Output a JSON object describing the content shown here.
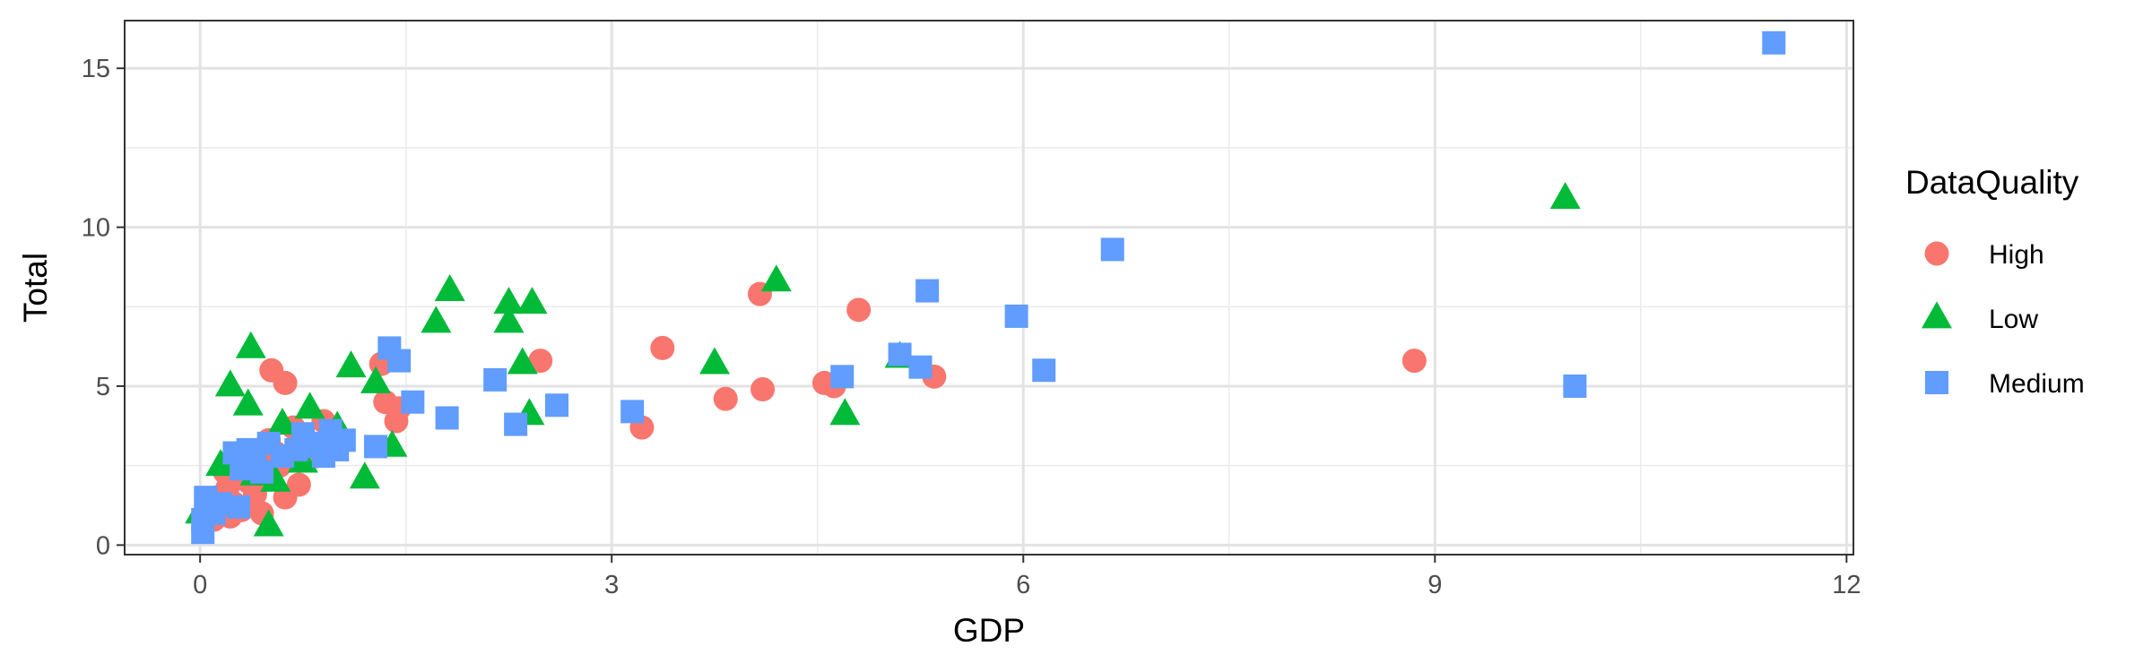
{
  "chart_data": {
    "type": "scatter",
    "title": "",
    "xlabel": "GDP",
    "ylabel": "Total",
    "xlim": [
      -0.55,
      12.05
    ],
    "ylim": [
      -0.3,
      16.5
    ],
    "x_ticks": [
      0,
      3,
      6,
      9,
      12
    ],
    "y_ticks": [
      0,
      5,
      10,
      15
    ],
    "grid": true,
    "legend": {
      "title": "DataQuality",
      "position": "right"
    },
    "series": [
      {
        "name": "High",
        "shape": "circle",
        "color": "#F8766D",
        "points": [
          [
            0.05,
            1.2
          ],
          [
            0.1,
            0.8
          ],
          [
            0.12,
            1.5
          ],
          [
            0.15,
            1.0
          ],
          [
            0.18,
            2.3
          ],
          [
            0.2,
            1.8
          ],
          [
            0.22,
            0.9
          ],
          [
            0.25,
            1.3
          ],
          [
            0.3,
            1.1
          ],
          [
            0.35,
            2.0
          ],
          [
            0.4,
            1.6
          ],
          [
            0.45,
            1.0
          ],
          [
            0.5,
            3.3
          ],
          [
            0.55,
            2.9
          ],
          [
            0.58,
            2.5
          ],
          [
            0.62,
            1.5
          ],
          [
            0.68,
            3.7
          ],
          [
            0.72,
            1.9
          ],
          [
            0.85,
            2.8
          ],
          [
            0.9,
            3.9
          ],
          [
            0.52,
            5.5
          ],
          [
            0.62,
            5.1
          ],
          [
            1.32,
            5.7
          ],
          [
            1.35,
            4.5
          ],
          [
            1.43,
            3.9
          ],
          [
            1.45,
            4.3
          ],
          [
            2.48,
            5.8
          ],
          [
            3.22,
            3.7
          ],
          [
            3.37,
            6.2
          ],
          [
            3.83,
            4.6
          ],
          [
            4.08,
            7.9
          ],
          [
            4.1,
            4.9
          ],
          [
            4.55,
            5.1
          ],
          [
            4.62,
            5.0
          ],
          [
            4.8,
            7.4
          ],
          [
            5.35,
            5.3
          ],
          [
            8.85,
            5.8
          ]
        ]
      },
      {
        "name": "Low",
        "shape": "triangle",
        "color": "#00BA38",
        "points": [
          [
            0.0,
            1.0
          ],
          [
            0.15,
            2.5
          ],
          [
            0.22,
            5.0
          ],
          [
            0.35,
            4.4
          ],
          [
            0.37,
            6.2
          ],
          [
            0.4,
            2.2
          ],
          [
            0.5,
            0.6
          ],
          [
            0.55,
            2.0
          ],
          [
            0.6,
            3.8
          ],
          [
            0.7,
            3.1
          ],
          [
            0.75,
            2.6
          ],
          [
            0.8,
            4.3
          ],
          [
            1.0,
            3.7
          ],
          [
            1.1,
            5.6
          ],
          [
            1.2,
            2.1
          ],
          [
            1.28,
            5.1
          ],
          [
            1.4,
            3.1
          ],
          [
            1.72,
            7.0
          ],
          [
            1.82,
            8.0
          ],
          [
            2.25,
            7.6
          ],
          [
            2.25,
            7.0
          ],
          [
            2.35,
            5.7
          ],
          [
            2.4,
            4.1
          ],
          [
            2.42,
            7.6
          ],
          [
            3.75,
            5.7
          ],
          [
            4.2,
            8.3
          ],
          [
            4.7,
            4.1
          ],
          [
            5.1,
            5.9
          ],
          [
            9.95,
            10.9
          ]
        ]
      },
      {
        "name": "Medium",
        "shape": "square",
        "color": "#619CFF",
        "points": [
          [
            0.02,
            0.4
          ],
          [
            0.02,
            0.8
          ],
          [
            0.04,
            1.5
          ],
          [
            0.1,
            1.0
          ],
          [
            0.15,
            1.3
          ],
          [
            0.25,
            2.9
          ],
          [
            0.28,
            1.2
          ],
          [
            0.3,
            2.4
          ],
          [
            0.35,
            3.0
          ],
          [
            0.4,
            2.6
          ],
          [
            0.45,
            2.3
          ],
          [
            0.5,
            3.2
          ],
          [
            0.6,
            2.8
          ],
          [
            0.7,
            3.0
          ],
          [
            0.75,
            3.5
          ],
          [
            0.8,
            3.1
          ],
          [
            0.85,
            3.2
          ],
          [
            0.9,
            2.8
          ],
          [
            0.95,
            3.6
          ],
          [
            1.0,
            3.0
          ],
          [
            1.05,
            3.3
          ],
          [
            1.28,
            3.1
          ],
          [
            1.38,
            6.2
          ],
          [
            1.45,
            5.8
          ],
          [
            1.55,
            4.5
          ],
          [
            1.8,
            4.0
          ],
          [
            2.15,
            5.2
          ],
          [
            2.3,
            3.8
          ],
          [
            2.6,
            4.4
          ],
          [
            3.15,
            4.2
          ],
          [
            4.68,
            5.3
          ],
          [
            5.1,
            6.0
          ],
          [
            5.25,
            5.6
          ],
          [
            5.3,
            8.0
          ],
          [
            5.95,
            7.2
          ],
          [
            6.15,
            5.5
          ],
          [
            6.65,
            9.3
          ],
          [
            10.02,
            5.0
          ],
          [
            11.47,
            15.8
          ]
        ]
      }
    ]
  }
}
